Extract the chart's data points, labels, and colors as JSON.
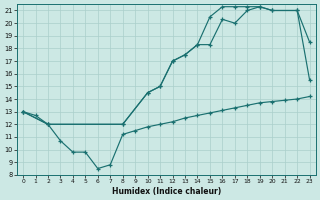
{
  "xlabel": "Humidex (Indice chaleur)",
  "bg_color": "#cce8e4",
  "line_color": "#1a7070",
  "grid_color": "#aacfcb",
  "xlim": [
    -0.5,
    23.5
  ],
  "ylim": [
    8,
    21.5
  ],
  "yticks": [
    8,
    9,
    10,
    11,
    12,
    13,
    14,
    15,
    16,
    17,
    18,
    19,
    20,
    21
  ],
  "xticks": [
    0,
    1,
    2,
    3,
    4,
    5,
    6,
    7,
    8,
    9,
    10,
    11,
    12,
    13,
    14,
    15,
    16,
    17,
    18,
    19,
    20,
    21,
    22,
    23
  ],
  "line_bottom_x": [
    0,
    1,
    2,
    3,
    4,
    5,
    6,
    7,
    8,
    9,
    10,
    11,
    12,
    13,
    14,
    15,
    16,
    17,
    18,
    19,
    20,
    21,
    22,
    23
  ],
  "line_bottom_y": [
    13.0,
    12.7,
    12.0,
    10.7,
    9.8,
    9.8,
    8.5,
    8.8,
    11.2,
    11.5,
    11.8,
    12.0,
    12.2,
    12.5,
    12.7,
    12.9,
    13.1,
    13.3,
    13.5,
    13.7,
    13.8,
    13.9,
    14.0,
    14.2
  ],
  "line_mid_x": [
    0,
    2,
    8,
    10,
    11,
    12,
    13,
    14,
    15,
    16,
    17,
    18,
    19,
    20,
    22,
    23
  ],
  "line_mid_y": [
    13.0,
    12.0,
    12.0,
    14.5,
    15.0,
    17.0,
    17.5,
    18.3,
    18.3,
    20.3,
    20.0,
    21.0,
    21.3,
    21.0,
    21.0,
    18.5
  ],
  "line_top_x": [
    0,
    2,
    8,
    10,
    11,
    12,
    13,
    14,
    15,
    16,
    17,
    18,
    19,
    20,
    22,
    23
  ],
  "line_top_y": [
    13.0,
    12.0,
    12.0,
    14.5,
    15.0,
    17.0,
    17.5,
    18.3,
    20.5,
    21.3,
    21.3,
    21.3,
    21.3,
    21.0,
    21.0,
    15.5
  ]
}
